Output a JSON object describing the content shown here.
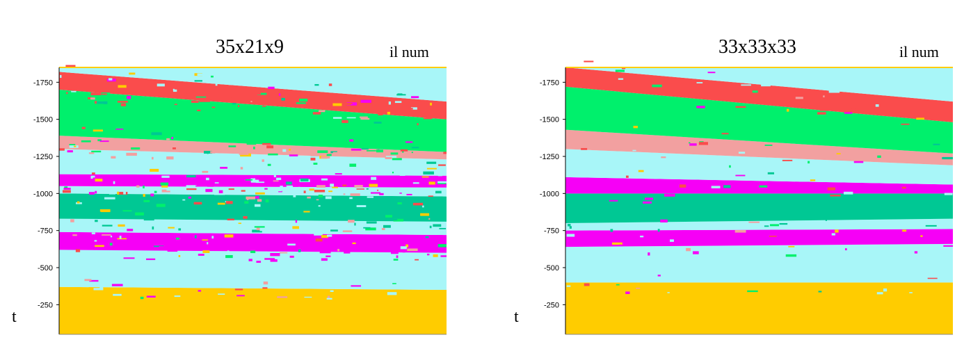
{
  "colors": {
    "yellow": "#FFCC00",
    "cyan": "#A8F6F8",
    "magenta": "#F600F6",
    "teal": "#00C894",
    "green": "#00F06C",
    "pink": "#F2A0A0",
    "red": "#FA4C4C"
  },
  "chart_data": [
    {
      "type": "heatmap",
      "title": "35x21x9",
      "xlabel": "il num",
      "ylabel": "t",
      "ylim": [
        -1850,
        -50
      ],
      "yticks": [
        -250,
        -500,
        -750,
        -1000,
        -1250,
        -1500,
        -1750
      ],
      "ytick_labels": [
        "-250",
        "-500",
        "-750",
        "-1000",
        "-1250",
        "-1500",
        "-1750"
      ],
      "grid": false,
      "noise_level": 0.55,
      "bands": [
        {
          "color": "yellow",
          "top": [
            -50,
            -50
          ],
          "bottom": [
            -370,
            -350
          ]
        },
        {
          "color": "cyan",
          "top": [
            -370,
            -350
          ],
          "bottom": [
            -620,
            -600
          ]
        },
        {
          "color": "magenta",
          "top": [
            -620,
            -600
          ],
          "bottom": [
            -740,
            -720
          ]
        },
        {
          "color": "cyan",
          "top": [
            -740,
            -720
          ],
          "bottom": [
            -830,
            -810
          ]
        },
        {
          "color": "teal",
          "top": [
            -830,
            -810
          ],
          "bottom": [
            -1000,
            -980
          ]
        },
        {
          "color": "cyan",
          "top": [
            -1000,
            -980
          ],
          "bottom": [
            -1050,
            -1040
          ]
        },
        {
          "color": "magenta",
          "top": [
            -1050,
            -1040
          ],
          "bottom": [
            -1130,
            -1120
          ]
        },
        {
          "color": "cyan",
          "top": [
            -1130,
            -1120
          ],
          "bottom": [
            -1300,
            -1230
          ]
        },
        {
          "color": "pink",
          "top": [
            -1300,
            -1230
          ],
          "bottom": [
            -1390,
            -1280
          ]
        },
        {
          "color": "green",
          "top": [
            -1390,
            -1280
          ],
          "bottom": [
            -1700,
            -1500
          ]
        },
        {
          "color": "red",
          "top": [
            -1700,
            -1500
          ],
          "bottom": [
            -1820,
            -1620
          ]
        },
        {
          "color": "cyan",
          "top": [
            -1820,
            -1620
          ],
          "bottom": [
            -1850,
            -1850
          ]
        }
      ]
    },
    {
      "type": "heatmap",
      "title": "33x33x33",
      "xlabel": "il num",
      "ylabel": "t",
      "ylim": [
        -1850,
        -50
      ],
      "yticks": [
        -250,
        -500,
        -750,
        -1000,
        -1250,
        -1500,
        -1750
      ],
      "ytick_labels": [
        "-250",
        "-500",
        "-750",
        "-1000",
        "-1250",
        "-1500",
        "-1750"
      ],
      "grid": false,
      "noise_level": 0.15,
      "bands": [
        {
          "color": "yellow",
          "top": [
            -50,
            -50
          ],
          "bottom": [
            -400,
            -400
          ]
        },
        {
          "color": "cyan",
          "top": [
            -400,
            -400
          ],
          "bottom": [
            -640,
            -660
          ]
        },
        {
          "color": "magenta",
          "top": [
            -640,
            -660
          ],
          "bottom": [
            -750,
            -760
          ]
        },
        {
          "color": "cyan",
          "top": [
            -750,
            -760
          ],
          "bottom": [
            -800,
            -830
          ]
        },
        {
          "color": "teal",
          "top": [
            -800,
            -830
          ],
          "bottom": [
            -1000,
            -1000
          ]
        },
        {
          "color": "magenta",
          "top": [
            -1000,
            -1000
          ],
          "bottom": [
            -1110,
            -1060
          ]
        },
        {
          "color": "cyan",
          "top": [
            -1110,
            -1060
          ],
          "bottom": [
            -1300,
            -1190
          ]
        },
        {
          "color": "pink",
          "top": [
            -1300,
            -1190
          ],
          "bottom": [
            -1430,
            -1270
          ]
        },
        {
          "color": "green",
          "top": [
            -1430,
            -1270
          ],
          "bottom": [
            -1720,
            -1480
          ]
        },
        {
          "color": "red",
          "top": [
            -1720,
            -1480
          ],
          "bottom": [
            -1850,
            -1620
          ]
        },
        {
          "color": "cyan",
          "top": [
            -1850,
            -1620
          ],
          "bottom": [
            -1850,
            -1850
          ]
        }
      ]
    }
  ]
}
